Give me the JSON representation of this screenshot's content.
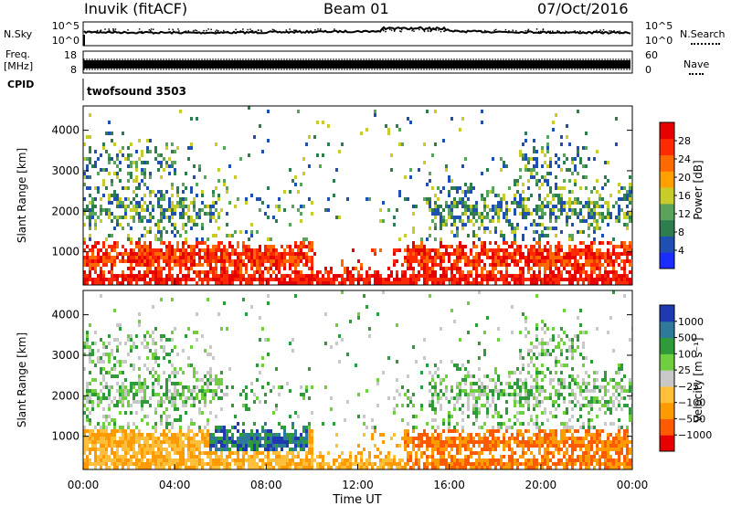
{
  "header": {
    "title_left": "Inuvik (fitACF)",
    "title_center": "Beam 01",
    "title_right": "07/Oct/2016"
  },
  "side_labels": {
    "nsky": "N.Sky",
    "freq_line1": "Freq.",
    "freq_line2": "[MHz]",
    "cpid": "CPID",
    "nsearch": "N.Search",
    "nave": "Nave"
  },
  "cpid_text": "twofsound 3503",
  "colors": {
    "power": [
      "#1a2cff",
      "#1f4fb0",
      "#2e7d4f",
      "#5aa35a",
      "#c8cc2a",
      "#ffa000",
      "#ff6a00",
      "#ff2a00",
      "#e60000"
    ],
    "velocity": [
      "#e60000",
      "#ff5a00",
      "#ff9a00",
      "#ffbf3a",
      "#c8c8c8",
      "#6fcf3f",
      "#2f9a3a",
      "#2f7a9a",
      "#1f3ab0"
    ]
  },
  "chart_data": [
    {
      "type": "line",
      "name": "noise-panel",
      "left_scale_ticks": [
        "10^5",
        "10^0"
      ],
      "right_scale_ticks": [
        "10^5",
        "10^0"
      ],
      "note": "N.Sky noise level (solid) and N.Search (dotted)"
    },
    {
      "type": "line",
      "name": "freq-nave-panel",
      "left_ticks": [
        "18",
        "8"
      ],
      "right_ticks": [
        "60",
        "0"
      ],
      "freq_mhz_approx": 11,
      "nave_approx": 30
    },
    {
      "type": "heatmap",
      "name": "power",
      "xlabel": "",
      "ylabel": "Slant Range [km]",
      "y_ticks": [
        "1000",
        "2000",
        "3000",
        "4000"
      ],
      "x_ticks": [],
      "xlim_hours": [
        0,
        24
      ],
      "ylim_km": [
        180,
        4600
      ],
      "colorbar_label": "Power [dB]",
      "colorbar_ticks": [
        "4",
        "8",
        "12",
        "16",
        "20",
        "24",
        "28"
      ],
      "colorbar_range": [
        0,
        32
      ]
    },
    {
      "type": "heatmap",
      "name": "velocity",
      "xlabel": "Time UT",
      "ylabel": "Slant Range [km]",
      "y_ticks": [
        "1000",
        "2000",
        "3000",
        "4000"
      ],
      "x_ticks": [
        "00:00",
        "04:00",
        "08:00",
        "12:00",
        "16:00",
        "20:00",
        "00:00"
      ],
      "xlim_hours": [
        0,
        24
      ],
      "ylim_km": [
        180,
        4600
      ],
      "colorbar_label": "Velocity [m s⁻¹]",
      "colorbar_ticks": [
        "1000",
        "500",
        "100",
        "25",
        "−25",
        "−100",
        "−500",
        "−1000"
      ]
    }
  ]
}
